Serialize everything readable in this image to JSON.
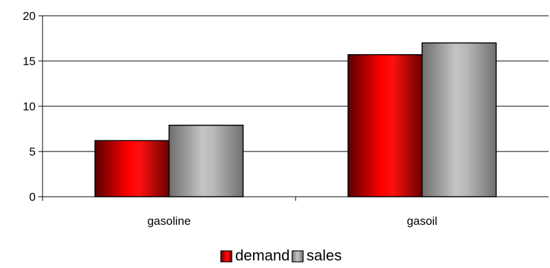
{
  "chart_data": {
    "type": "bar",
    "categories": [
      "gasoline",
      "gasoil"
    ],
    "series": [
      {
        "name": "demand",
        "values": [
          6.2,
          15.7
        ],
        "color": "#ff0000"
      },
      {
        "name": "sales",
        "values": [
          7.9,
          17.0
        ],
        "color": "#b3b3b3"
      }
    ],
    "ylim": [
      0,
      20
    ],
    "yticks": [
      "0",
      "5",
      "10",
      "15",
      "20"
    ],
    "grid": true,
    "legend_position": "bottom"
  }
}
